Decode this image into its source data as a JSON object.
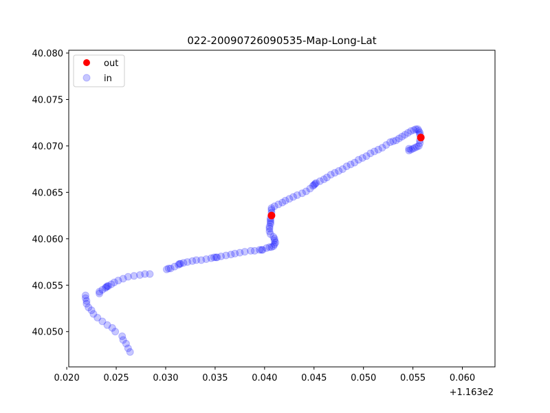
{
  "chart_data": {
    "type": "scatter",
    "title": "022-20090726090535-Map-Long-Lat",
    "xlabel": "",
    "ylabel": "",
    "x_offset_label": "+1.163e2",
    "x_tick_labels": [
      "0.020",
      "0.025",
      "0.030",
      "0.035",
      "0.040",
      "0.045",
      "0.050",
      "0.055",
      "0.060"
    ],
    "y_tick_labels": [
      "40.050",
      "40.055",
      "40.060",
      "40.065",
      "40.070",
      "40.075",
      "40.080"
    ],
    "xlim": [
      116.3202,
      116.3633
    ],
    "ylim": [
      40.0462,
      40.0803
    ],
    "grid": false,
    "legend": {
      "placement": "top-left",
      "entries": [
        "out",
        "in"
      ]
    },
    "series": [
      {
        "name": "out",
        "color": "#ff0000",
        "alpha": 1.0,
        "points": [
          [
            116.3407,
            40.0625
          ],
          [
            116.3558,
            40.0709
          ]
        ]
      },
      {
        "name": "in",
        "color": "#0000ff",
        "alpha": 0.22,
        "points": [
          [
            116.3264,
            40.0478
          ],
          [
            116.3262,
            40.0482
          ],
          [
            116.326,
            40.0487
          ],
          [
            116.3257,
            40.0491
          ],
          [
            116.3256,
            40.0495
          ],
          [
            116.3249,
            40.05
          ],
          [
            116.3246,
            40.0504
          ],
          [
            116.3241,
            40.0507
          ],
          [
            116.3236,
            40.0511
          ],
          [
            116.3231,
            40.0515
          ],
          [
            116.3227,
            40.0519
          ],
          [
            116.3225,
            40.0523
          ],
          [
            116.3222,
            40.0526
          ],
          [
            116.322,
            40.053
          ],
          [
            116.322,
            40.0533
          ],
          [
            116.3219,
            40.0536
          ],
          [
            116.3219,
            40.0539
          ],
          [
            116.3233,
            40.0541
          ],
          [
            116.3233,
            40.0543
          ],
          [
            116.3236,
            40.0545
          ],
          [
            116.3239,
            40.0547
          ],
          [
            116.324,
            40.0548
          ],
          [
            116.3241,
            40.0549
          ],
          [
            116.3242,
            40.0549
          ],
          [
            116.3245,
            40.0551
          ],
          [
            116.3248,
            40.0553
          ],
          [
            116.3252,
            40.0555
          ],
          [
            116.3257,
            40.0557
          ],
          [
            116.3262,
            40.0559
          ],
          [
            116.3268,
            40.056
          ],
          [
            116.3274,
            40.0561
          ],
          [
            116.3279,
            40.0562
          ],
          [
            116.3284,
            40.0562
          ],
          [
            116.3301,
            40.0567
          ],
          [
            116.3303,
            40.0568
          ],
          [
            116.3305,
            40.0568
          ],
          [
            116.3309,
            40.057
          ],
          [
            116.3313,
            40.0572
          ],
          [
            116.3314,
            40.0573
          ],
          [
            116.3315,
            40.0573
          ],
          [
            116.3318,
            40.0574
          ],
          [
            116.3322,
            40.0575
          ],
          [
            116.3327,
            40.0576
          ],
          [
            116.3331,
            40.0577
          ],
          [
            116.3336,
            40.0577
          ],
          [
            116.3341,
            40.0578
          ],
          [
            116.3346,
            40.0579
          ],
          [
            116.3349,
            40.058
          ],
          [
            116.3351,
            40.058
          ],
          [
            116.3352,
            40.058
          ],
          [
            116.3356,
            40.0581
          ],
          [
            116.3361,
            40.0582
          ],
          [
            116.3366,
            40.0583
          ],
          [
            116.337,
            40.0584
          ],
          [
            116.3375,
            40.0585
          ],
          [
            116.338,
            40.0586
          ],
          [
            116.3386,
            40.0587
          ],
          [
            116.339,
            40.0587
          ],
          [
            116.3395,
            40.0588
          ],
          [
            116.3397,
            40.0588
          ],
          [
            116.3398,
            40.0588
          ],
          [
            116.3402,
            40.059
          ],
          [
            116.3405,
            40.0591
          ],
          [
            116.3407,
            40.0591
          ],
          [
            116.3409,
            40.0592
          ],
          [
            116.341,
            40.0594
          ],
          [
            116.3411,
            40.0596
          ],
          [
            116.341,
            40.0598
          ],
          [
            116.341,
            40.06
          ],
          [
            116.3409,
            40.0602
          ],
          [
            116.3406,
            40.0605
          ],
          [
            116.3405,
            40.0608
          ],
          [
            116.3405,
            40.0611
          ],
          [
            116.3405,
            40.0613
          ],
          [
            116.3406,
            40.0616
          ],
          [
            116.3406,
            40.0618
          ],
          [
            116.3406,
            40.062
          ],
          [
            116.3406,
            40.0622
          ],
          [
            116.3407,
            40.0628
          ],
          [
            116.3407,
            40.0631
          ],
          [
            116.3407,
            40.0633
          ],
          [
            116.341,
            40.0635
          ],
          [
            116.3414,
            40.0637
          ],
          [
            116.3418,
            40.0639
          ],
          [
            116.3421,
            40.0641
          ],
          [
            116.3425,
            40.0643
          ],
          [
            116.3429,
            40.0645
          ],
          [
            116.3433,
            40.0647
          ],
          [
            116.3438,
            40.0649
          ],
          [
            116.3442,
            40.0651
          ],
          [
            116.3446,
            40.0654
          ],
          [
            116.3449,
            40.0657
          ],
          [
            116.345,
            40.0658
          ],
          [
            116.3451,
            40.0659
          ],
          [
            116.3452,
            40.066
          ],
          [
            116.3456,
            40.0662
          ],
          [
            116.346,
            40.0664
          ],
          [
            116.3463,
            40.0666
          ],
          [
            116.3467,
            40.0669
          ],
          [
            116.3471,
            40.0671
          ],
          [
            116.3475,
            40.0673
          ],
          [
            116.3479,
            40.0675
          ],
          [
            116.3483,
            40.0678
          ],
          [
            116.3487,
            40.068
          ],
          [
            116.3491,
            40.0682
          ],
          [
            116.3495,
            40.0685
          ],
          [
            116.3499,
            40.0687
          ],
          [
            116.3503,
            40.0689
          ],
          [
            116.3507,
            40.0692
          ],
          [
            116.3511,
            40.0694
          ],
          [
            116.3515,
            40.0696
          ],
          [
            116.3519,
            40.0698
          ],
          [
            116.3523,
            40.0701
          ],
          [
            116.3527,
            40.0704
          ],
          [
            116.353,
            40.0705
          ],
          [
            116.3533,
            40.0706
          ],
          [
            116.3536,
            40.0708
          ],
          [
            116.3539,
            40.071
          ],
          [
            116.3542,
            40.0712
          ],
          [
            116.3545,
            40.0714
          ],
          [
            116.3548,
            40.0716
          ],
          [
            116.3551,
            40.0717
          ],
          [
            116.3553,
            40.0718
          ],
          [
            116.3555,
            40.0718
          ],
          [
            116.3556,
            40.0716
          ],
          [
            116.3557,
            40.0714
          ],
          [
            116.3557,
            40.0712
          ],
          [
            116.3557,
            40.0706
          ],
          [
            116.3557,
            40.0703
          ],
          [
            116.3556,
            40.07
          ],
          [
            116.3554,
            40.0699
          ],
          [
            116.3552,
            40.0698
          ],
          [
            116.355,
            40.0697
          ],
          [
            116.3548,
            40.0696
          ],
          [
            116.3546,
            40.0695
          ],
          [
            116.3546,
            40.0697
          ]
        ]
      }
    ]
  }
}
